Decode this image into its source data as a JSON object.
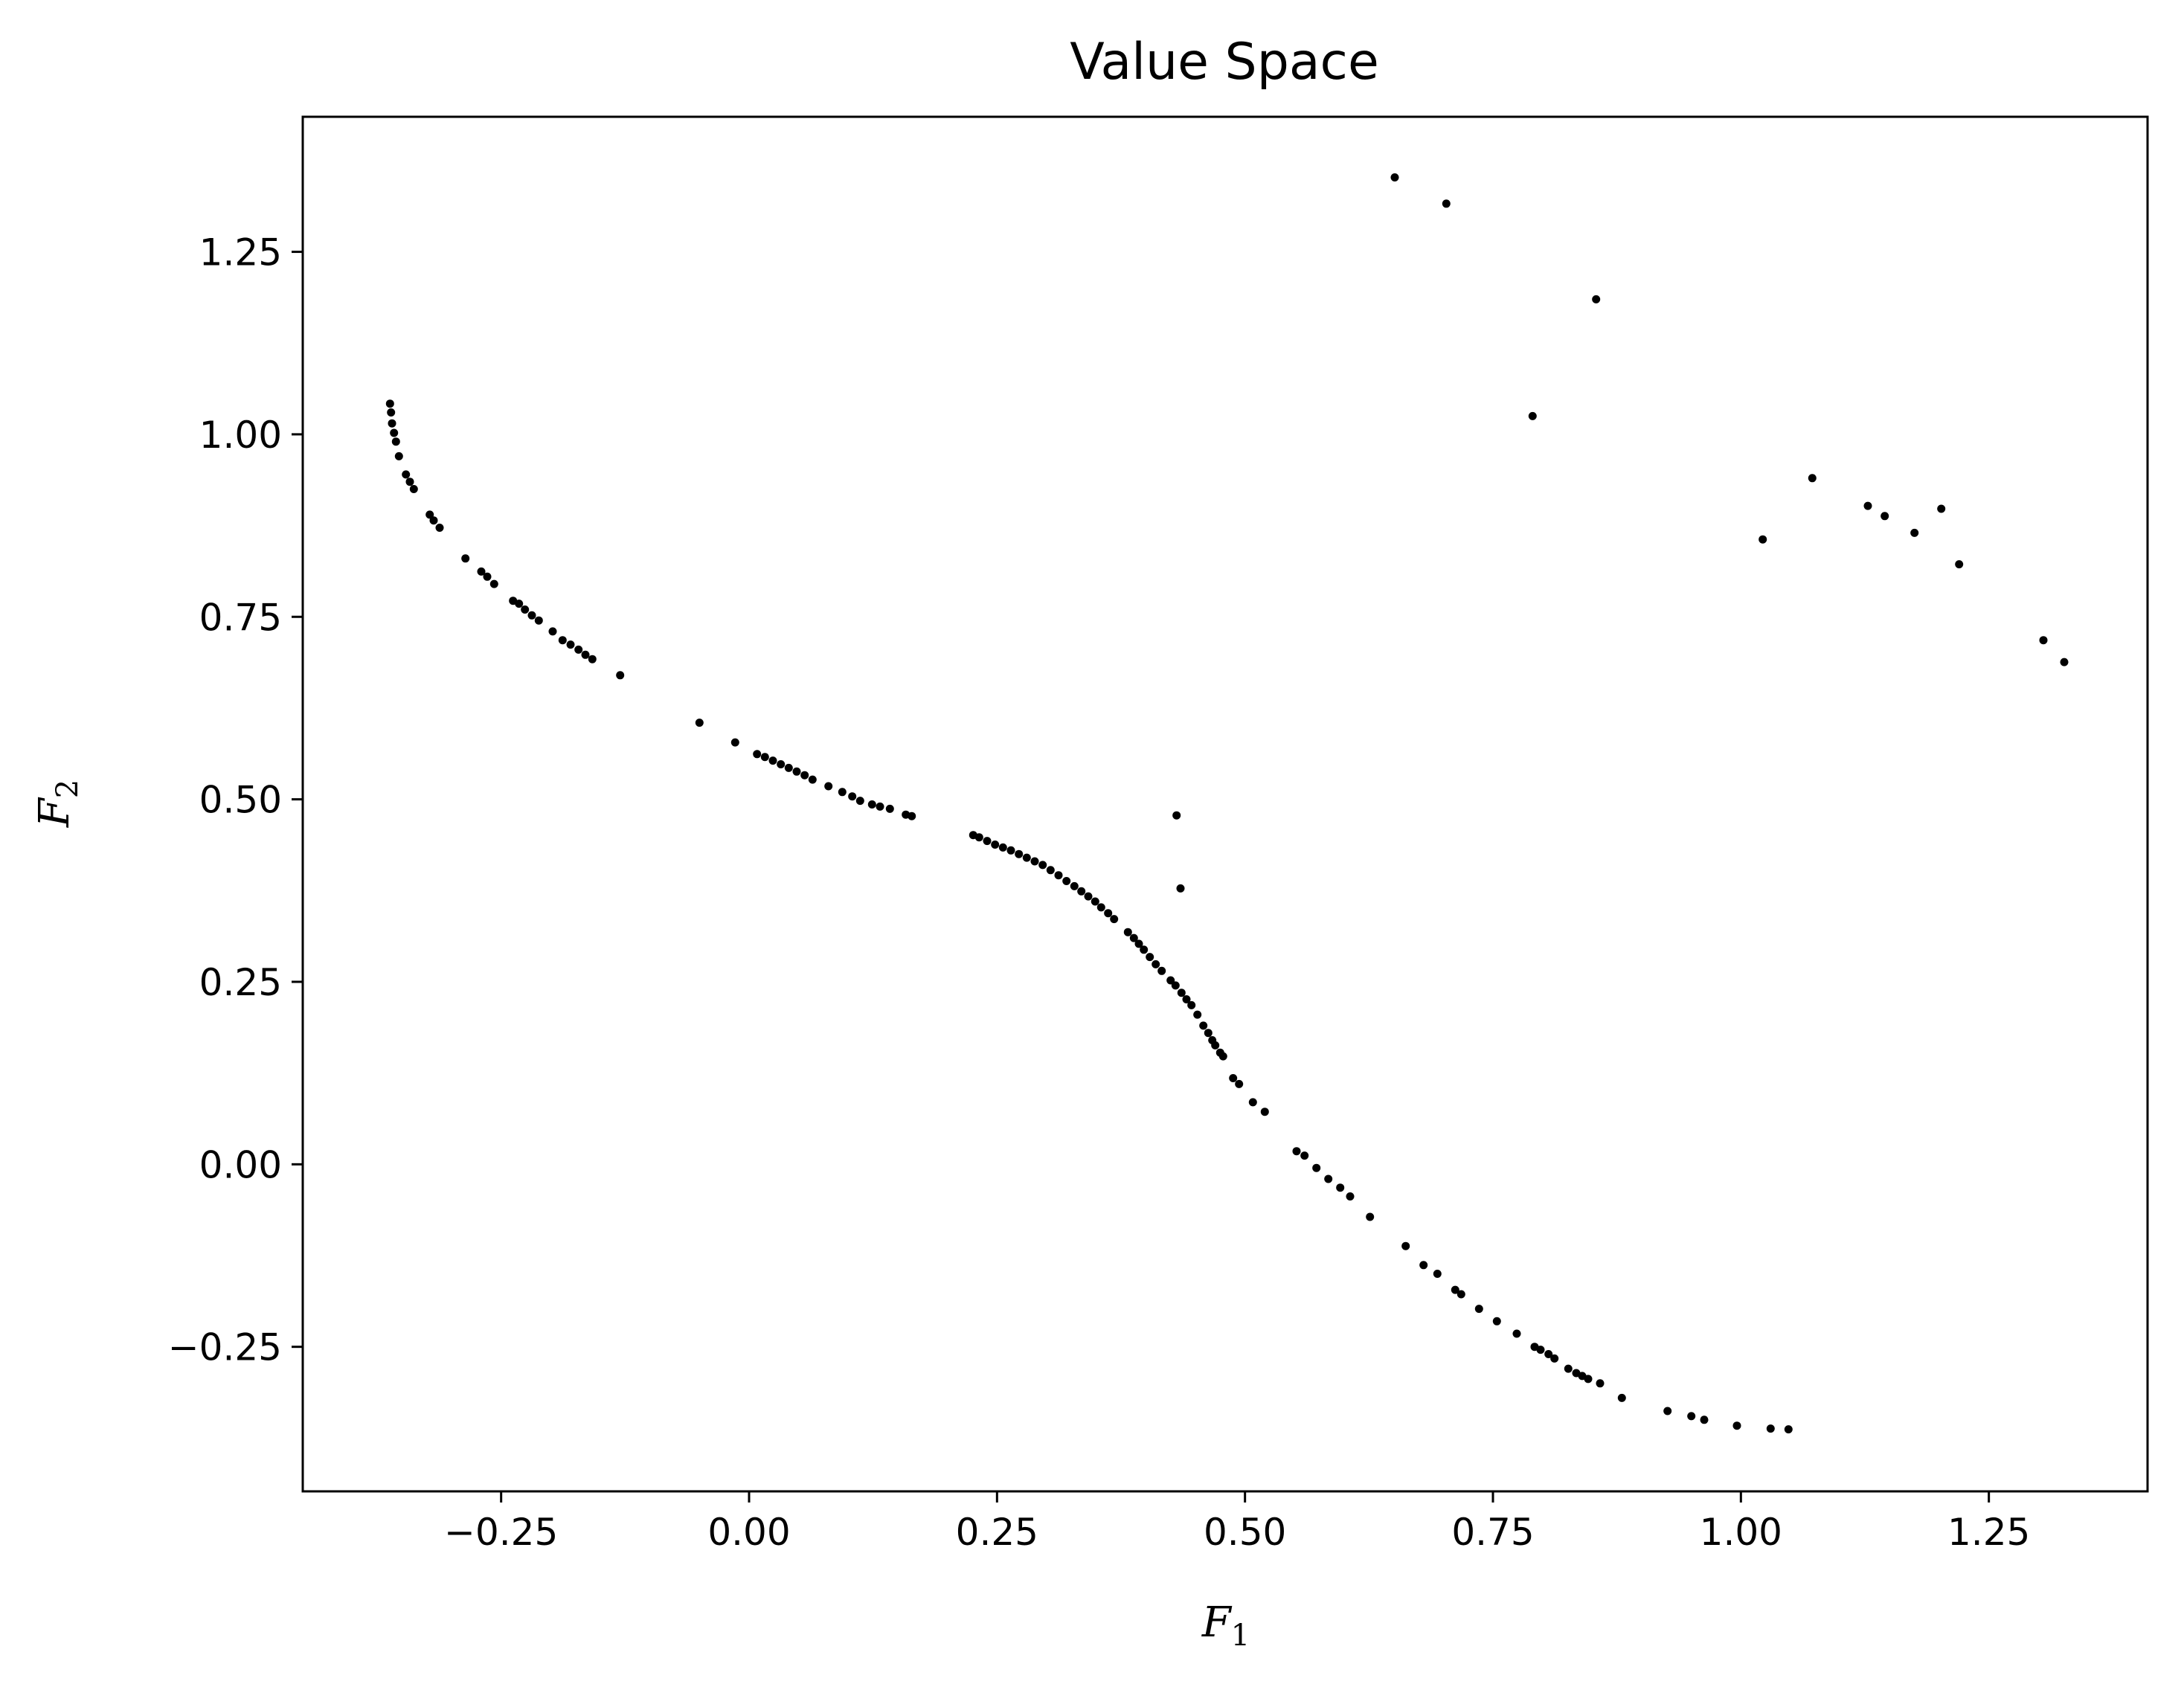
{
  "chart_data": {
    "type": "scatter",
    "title": "Value Space",
    "xlabel": {
      "base": "F",
      "sub": "1"
    },
    "ylabel": {
      "base": "F",
      "sub": "2"
    },
    "xlim": [
      -0.45,
      1.41
    ],
    "ylim": [
      -0.448,
      1.435
    ],
    "xticks": [
      {
        "value": -0.25,
        "label": "−0.25"
      },
      {
        "value": 0.0,
        "label": "0.00"
      },
      {
        "value": 0.25,
        "label": "0.25"
      },
      {
        "value": 0.5,
        "label": "0.50"
      },
      {
        "value": 0.75,
        "label": "0.75"
      },
      {
        "value": 1.0,
        "label": "1.00"
      },
      {
        "value": 1.25,
        "label": "1.25"
      }
    ],
    "yticks": [
      {
        "value": -0.25,
        "label": "−0.25"
      },
      {
        "value": 0.0,
        "label": "0.00"
      },
      {
        "value": 0.25,
        "label": "0.25"
      },
      {
        "value": 0.5,
        "label": "0.50"
      },
      {
        "value": 0.75,
        "label": "0.75"
      },
      {
        "value": 1.0,
        "label": "1.00"
      },
      {
        "value": 1.25,
        "label": "1.25"
      }
    ],
    "grid": false,
    "marker_color": "#000000",
    "series": [
      {
        "points": [
          [
            -0.362,
            1.042
          ],
          [
            -0.361,
            1.03
          ],
          [
            -0.36,
            1.015
          ],
          [
            -0.358,
            1.002
          ],
          [
            -0.356,
            0.99
          ],
          [
            -0.353,
            0.97
          ],
          [
            -0.346,
            0.945
          ],
          [
            -0.342,
            0.935
          ],
          [
            -0.338,
            0.925
          ],
          [
            -0.322,
            0.89
          ],
          [
            -0.318,
            0.882
          ],
          [
            -0.312,
            0.872
          ],
          [
            -0.286,
            0.83
          ],
          [
            -0.27,
            0.812
          ],
          [
            -0.264,
            0.805
          ],
          [
            -0.257,
            0.795
          ],
          [
            -0.238,
            0.772
          ],
          [
            -0.232,
            0.768
          ],
          [
            -0.226,
            0.76
          ],
          [
            -0.219,
            0.752
          ],
          [
            -0.212,
            0.745
          ],
          [
            -0.198,
            0.73
          ],
          [
            -0.188,
            0.718
          ],
          [
            -0.18,
            0.712
          ],
          [
            -0.172,
            0.705
          ],
          [
            -0.165,
            0.698
          ],
          [
            -0.158,
            0.692
          ],
          [
            -0.13,
            0.67
          ],
          [
            -0.05,
            0.605
          ],
          [
            -0.014,
            0.578
          ],
          [
            0.008,
            0.562
          ],
          [
            0.016,
            0.558
          ],
          [
            0.024,
            0.553
          ],
          [
            0.032,
            0.548
          ],
          [
            0.04,
            0.543
          ],
          [
            0.048,
            0.538
          ],
          [
            0.056,
            0.533
          ],
          [
            0.064,
            0.527
          ],
          [
            0.08,
            0.518
          ],
          [
            0.094,
            0.51
          ],
          [
            0.104,
            0.504
          ],
          [
            0.112,
            0.498
          ],
          [
            0.124,
            0.493
          ],
          [
            0.132,
            0.49
          ],
          [
            0.142,
            0.487
          ],
          [
            0.158,
            0.479
          ],
          [
            0.164,
            0.477
          ],
          [
            0.226,
            0.451
          ],
          [
            0.232,
            0.448
          ],
          [
            0.24,
            0.443
          ],
          [
            0.248,
            0.438
          ],
          [
            0.256,
            0.434
          ],
          [
            0.264,
            0.43
          ],
          [
            0.272,
            0.425
          ],
          [
            0.28,
            0.42
          ],
          [
            0.288,
            0.415
          ],
          [
            0.296,
            0.41
          ],
          [
            0.304,
            0.403
          ],
          [
            0.312,
            0.396
          ],
          [
            0.32,
            0.388
          ],
          [
            0.328,
            0.381
          ],
          [
            0.335,
            0.374
          ],
          [
            0.342,
            0.367
          ],
          [
            0.349,
            0.36
          ],
          [
            0.355,
            0.352
          ],
          [
            0.362,
            0.344
          ],
          [
            0.368,
            0.336
          ],
          [
            0.382,
            0.318
          ],
          [
            0.388,
            0.31
          ],
          [
            0.393,
            0.302
          ],
          [
            0.398,
            0.294
          ],
          [
            0.404,
            0.284
          ],
          [
            0.41,
            0.274
          ],
          [
            0.416,
            0.265
          ],
          [
            0.425,
            0.252
          ],
          [
            0.43,
            0.245
          ],
          [
            0.436,
            0.235
          ],
          [
            0.441,
            0.226
          ],
          [
            0.446,
            0.218
          ],
          [
            0.452,
            0.205
          ],
          [
            0.458,
            0.19
          ],
          [
            0.463,
            0.18
          ],
          [
            0.467,
            0.17
          ],
          [
            0.47,
            0.163
          ],
          [
            0.475,
            0.153
          ],
          [
            0.478,
            0.148
          ],
          [
            0.488,
            0.118
          ],
          [
            0.494,
            0.11
          ],
          [
            0.508,
            0.085
          ],
          [
            0.52,
            0.072
          ],
          [
            0.552,
            0.018
          ],
          [
            0.56,
            0.012
          ],
          [
            0.572,
            -0.005
          ],
          [
            0.584,
            -0.02
          ],
          [
            0.596,
            -0.032
          ],
          [
            0.606,
            -0.044
          ],
          [
            0.626,
            -0.072
          ],
          [
            0.662,
            -0.112
          ],
          [
            0.68,
            -0.138
          ],
          [
            0.694,
            -0.15
          ],
          [
            0.712,
            -0.172
          ],
          [
            0.718,
            -0.178
          ],
          [
            0.736,
            -0.198
          ],
          [
            0.754,
            -0.215
          ],
          [
            0.774,
            -0.232
          ],
          [
            0.792,
            -0.25
          ],
          [
            0.798,
            -0.254
          ],
          [
            0.806,
            -0.26
          ],
          [
            0.812,
            -0.266
          ],
          [
            0.826,
            -0.28
          ],
          [
            0.834,
            -0.286
          ],
          [
            0.84,
            -0.29
          ],
          [
            0.846,
            -0.294
          ],
          [
            0.858,
            -0.3
          ],
          [
            0.88,
            -0.32
          ],
          [
            0.926,
            -0.338
          ],
          [
            0.95,
            -0.345
          ],
          [
            0.963,
            -0.35
          ],
          [
            0.996,
            -0.358
          ],
          [
            1.03,
            -0.362
          ],
          [
            1.048,
            -0.363
          ],
          [
            0.431,
            0.478
          ],
          [
            0.435,
            0.378
          ],
          [
            0.651,
            1.352
          ],
          [
            0.703,
            1.316
          ],
          [
            0.79,
            1.025
          ],
          [
            0.854,
            1.185
          ],
          [
            1.022,
            0.856
          ],
          [
            1.072,
            0.94
          ],
          [
            1.128,
            0.902
          ],
          [
            1.145,
            0.888
          ],
          [
            1.175,
            0.865
          ],
          [
            1.202,
            0.898
          ],
          [
            1.22,
            0.822
          ],
          [
            1.305,
            0.718
          ],
          [
            1.326,
            0.688
          ]
        ]
      }
    ]
  }
}
